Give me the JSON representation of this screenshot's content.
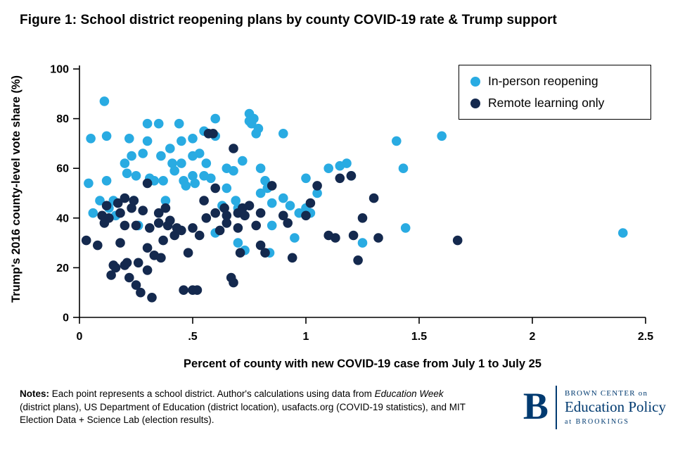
{
  "title": "Figure 1: School district reopening plans by county COVID-19 rate & Trump support",
  "chart_data": {
    "type": "scatter",
    "title": "Figure 1: School district reopening plans by county COVID-19 rate & Trump support",
    "xlabel": "Percent of county with new COVID-19 case from July 1 to July 25",
    "ylabel": "Trump's 2016 county-level vote share (%)",
    "xlim": [
      0,
      2.5
    ],
    "ylim": [
      0,
      100
    ],
    "x_ticks": [
      0,
      0.5,
      1,
      1.5,
      2,
      2.5
    ],
    "x_tick_labels": [
      "0",
      ".5",
      "1",
      "1.5",
      "2",
      "2.5"
    ],
    "y_ticks": [
      0,
      20,
      40,
      60,
      80,
      100
    ],
    "y_tick_labels": [
      "0",
      "20",
      "40",
      "60",
      "80",
      "100"
    ],
    "grid": false,
    "legend_position": "top-right-inside",
    "series": [
      {
        "name": "In-person reopening",
        "color": "#29ABE2",
        "points": [
          [
            0.04,
            54
          ],
          [
            0.05,
            72
          ],
          [
            0.06,
            42
          ],
          [
            0.09,
            47
          ],
          [
            0.11,
            87
          ],
          [
            0.12,
            73
          ],
          [
            0.12,
            55
          ],
          [
            0.13,
            44
          ],
          [
            0.15,
            47
          ],
          [
            0.16,
            41
          ],
          [
            0.2,
            62
          ],
          [
            0.21,
            58
          ],
          [
            0.22,
            72
          ],
          [
            0.23,
            65
          ],
          [
            0.24,
            47
          ],
          [
            0.25,
            57
          ],
          [
            0.26,
            37
          ],
          [
            0.28,
            66
          ],
          [
            0.3,
            78
          ],
          [
            0.3,
            71
          ],
          [
            0.31,
            56
          ],
          [
            0.33,
            55
          ],
          [
            0.35,
            78
          ],
          [
            0.36,
            65
          ],
          [
            0.37,
            55
          ],
          [
            0.38,
            47
          ],
          [
            0.4,
            68
          ],
          [
            0.41,
            62
          ],
          [
            0.42,
            59
          ],
          [
            0.44,
            78
          ],
          [
            0.45,
            71
          ],
          [
            0.45,
            62
          ],
          [
            0.46,
            55
          ],
          [
            0.47,
            53
          ],
          [
            0.5,
            72
          ],
          [
            0.5,
            65
          ],
          [
            0.5,
            57
          ],
          [
            0.51,
            54
          ],
          [
            0.53,
            66
          ],
          [
            0.55,
            75
          ],
          [
            0.55,
            57
          ],
          [
            0.56,
            62
          ],
          [
            0.58,
            56
          ],
          [
            0.6,
            80
          ],
          [
            0.6,
            73
          ],
          [
            0.6,
            34
          ],
          [
            0.63,
            45
          ],
          [
            0.65,
            60
          ],
          [
            0.65,
            52
          ],
          [
            0.68,
            59
          ],
          [
            0.69,
            47
          ],
          [
            0.7,
            44
          ],
          [
            0.7,
            30
          ],
          [
            0.72,
            63
          ],
          [
            0.73,
            27
          ],
          [
            0.75,
            82
          ],
          [
            0.75,
            79
          ],
          [
            0.76,
            78
          ],
          [
            0.77,
            80
          ],
          [
            0.78,
            74
          ],
          [
            0.79,
            76
          ],
          [
            0.8,
            60
          ],
          [
            0.8,
            50
          ],
          [
            0.82,
            55
          ],
          [
            0.83,
            52
          ],
          [
            0.84,
            26
          ],
          [
            0.85,
            46
          ],
          [
            0.85,
            37
          ],
          [
            0.9,
            74
          ],
          [
            0.9,
            48
          ],
          [
            0.93,
            45
          ],
          [
            0.95,
            32
          ],
          [
            0.97,
            42
          ],
          [
            1.0,
            56
          ],
          [
            1.0,
            44
          ],
          [
            1.02,
            42
          ],
          [
            1.05,
            50
          ],
          [
            1.1,
            60
          ],
          [
            1.15,
            61
          ],
          [
            1.18,
            62
          ],
          [
            1.2,
            57
          ],
          [
            1.25,
            30
          ],
          [
            1.4,
            71
          ],
          [
            1.43,
            60
          ],
          [
            1.44,
            36
          ],
          [
            1.6,
            73
          ],
          [
            2.4,
            34
          ]
        ]
      },
      {
        "name": "Remote learning only",
        "color": "#14294E",
        "points": [
          [
            0.03,
            31
          ],
          [
            0.08,
            29
          ],
          [
            0.1,
            41
          ],
          [
            0.11,
            38
          ],
          [
            0.12,
            45
          ],
          [
            0.13,
            40
          ],
          [
            0.14,
            17
          ],
          [
            0.15,
            21
          ],
          [
            0.16,
            20
          ],
          [
            0.17,
            46
          ],
          [
            0.18,
            42
          ],
          [
            0.18,
            30
          ],
          [
            0.2,
            48
          ],
          [
            0.2,
            37
          ],
          [
            0.2,
            21
          ],
          [
            0.21,
            22
          ],
          [
            0.22,
            16
          ],
          [
            0.23,
            44
          ],
          [
            0.24,
            47
          ],
          [
            0.25,
            37
          ],
          [
            0.25,
            13
          ],
          [
            0.26,
            22
          ],
          [
            0.27,
            10
          ],
          [
            0.28,
            43
          ],
          [
            0.3,
            54
          ],
          [
            0.3,
            28
          ],
          [
            0.3,
            19
          ],
          [
            0.31,
            36
          ],
          [
            0.32,
            8
          ],
          [
            0.33,
            25
          ],
          [
            0.35,
            42
          ],
          [
            0.35,
            38
          ],
          [
            0.36,
            24
          ],
          [
            0.37,
            31
          ],
          [
            0.38,
            44
          ],
          [
            0.39,
            37
          ],
          [
            0.4,
            39
          ],
          [
            0.42,
            33
          ],
          [
            0.43,
            36
          ],
          [
            0.45,
            35
          ],
          [
            0.46,
            11
          ],
          [
            0.48,
            26
          ],
          [
            0.5,
            36
          ],
          [
            0.5,
            11
          ],
          [
            0.52,
            11
          ],
          [
            0.53,
            33
          ],
          [
            0.55,
            47
          ],
          [
            0.56,
            40
          ],
          [
            0.57,
            74
          ],
          [
            0.59,
            74
          ],
          [
            0.6,
            52
          ],
          [
            0.6,
            42
          ],
          [
            0.62,
            35
          ],
          [
            0.64,
            44
          ],
          [
            0.65,
            41
          ],
          [
            0.65,
            38
          ],
          [
            0.67,
            16
          ],
          [
            0.68,
            14
          ],
          [
            0.68,
            68
          ],
          [
            0.7,
            42
          ],
          [
            0.7,
            36
          ],
          [
            0.71,
            26
          ],
          [
            0.72,
            44
          ],
          [
            0.73,
            41
          ],
          [
            0.75,
            45
          ],
          [
            0.78,
            37
          ],
          [
            0.8,
            42
          ],
          [
            0.8,
            29
          ],
          [
            0.82,
            26
          ],
          [
            0.85,
            53
          ],
          [
            0.9,
            41
          ],
          [
            0.92,
            38
          ],
          [
            0.94,
            24
          ],
          [
            1.0,
            41
          ],
          [
            1.02,
            46
          ],
          [
            1.05,
            53
          ],
          [
            1.1,
            33
          ],
          [
            1.13,
            32
          ],
          [
            1.15,
            56
          ],
          [
            1.2,
            57
          ],
          [
            1.21,
            33
          ],
          [
            1.23,
            23
          ],
          [
            1.25,
            40
          ],
          [
            1.3,
            48
          ],
          [
            1.32,
            32
          ],
          [
            1.67,
            31
          ]
        ]
      }
    ]
  },
  "notes": {
    "label": "Notes:",
    "segment1": " Each point represents a school district. Author's calculations using data from ",
    "italic1": "Education Week",
    "segment2": " (district plans), US Department of Education (district location), usafacts.org (COVID-19 statistics), and MIT Election Data + Science Lab (election results)."
  },
  "logo": {
    "letter": "B",
    "line1": "BROWN CENTER on",
    "line2": "Education Policy",
    "line3": "at BROOKINGS",
    "color": "#003A70"
  }
}
